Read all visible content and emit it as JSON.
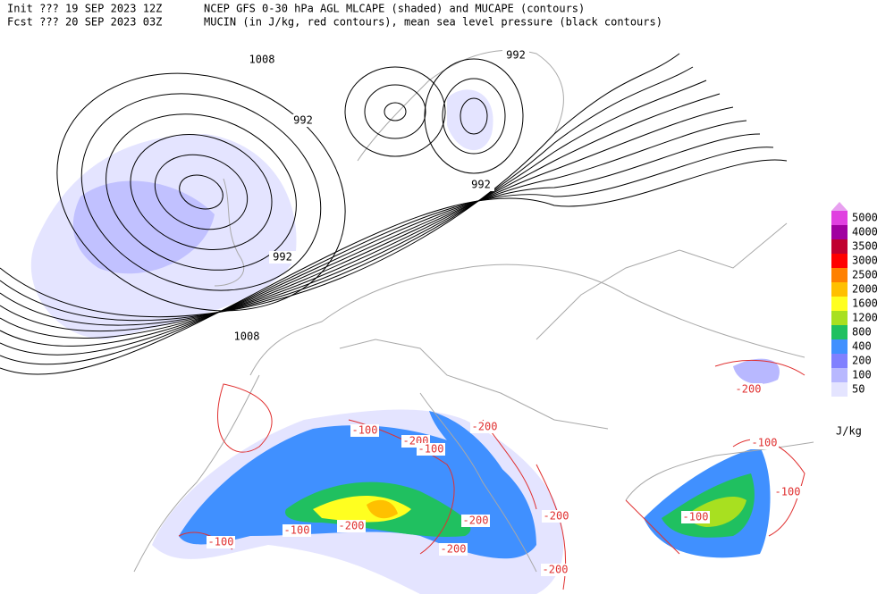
{
  "header": {
    "init": "Init  ??? 19 SEP 2023 12Z",
    "product": "NCEP GFS 0-30 hPa AGL MLCAPE (shaded) and MUCAPE (contours)",
    "fcst": "Fcst ??? 20 SEP 2023 03Z",
    "description": "MUCIN (in J/kg, red contours), mean sea level pressure (black contours)"
  },
  "colorbar": {
    "labels": [
      "5000",
      "4000",
      "3500",
      "3000",
      "2500",
      "2000",
      "1600",
      "1200",
      "800",
      "400",
      "200",
      "100",
      "50"
    ],
    "colors": [
      "#e040e0",
      "#a000a0",
      "#c00030",
      "#ff0000",
      "#ff8000",
      "#ffc000",
      "#ffff20",
      "#a8e020",
      "#20c060",
      "#4090ff",
      "#8080ff",
      "#b8b8ff",
      "#e4e4ff"
    ],
    "top_color": "#e8a0f0",
    "units": "J/kg"
  },
  "pressure_labels": [
    "1008",
    "992",
    "992",
    "992",
    "992",
    "1008"
  ],
  "cin_labels": [
    "-100",
    "-200",
    "-100",
    "-200",
    "-200",
    "-200",
    "-100",
    "-100",
    "-200",
    "-200",
    "-200",
    "-100",
    "-100",
    "-100",
    "-200"
  ]
}
